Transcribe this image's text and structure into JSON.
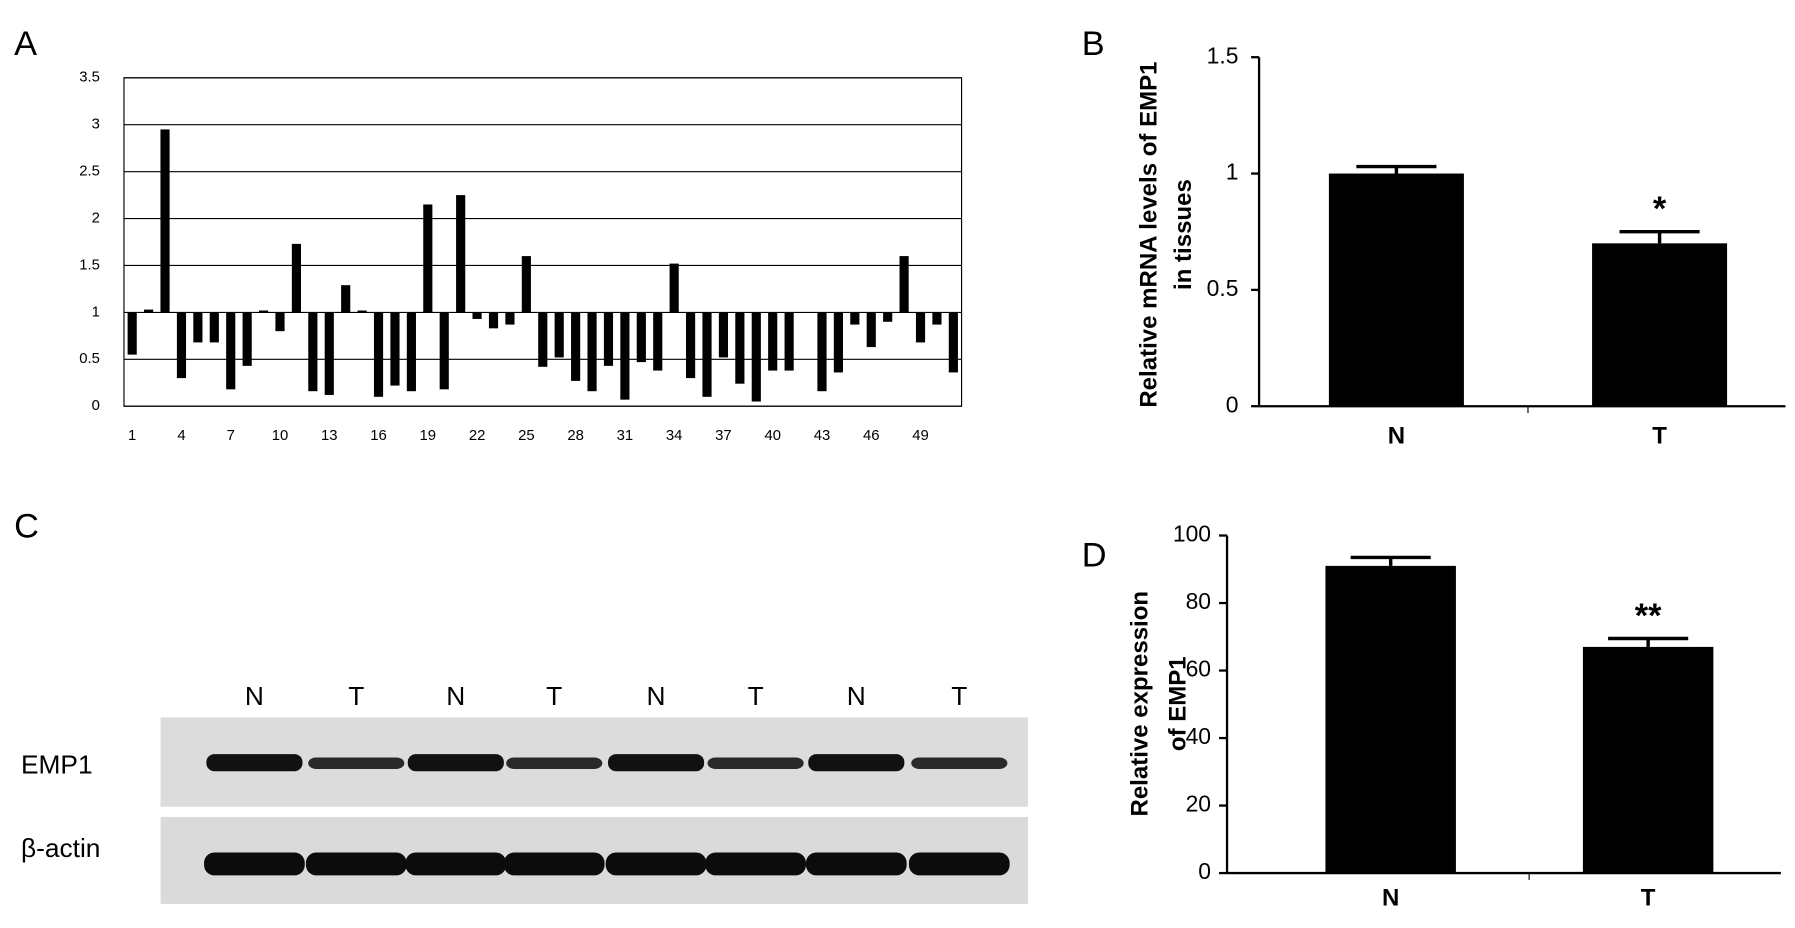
{
  "chart_data": [
    {
      "type": "bar",
      "panel": "A",
      "categories": [
        "1",
        null,
        null,
        "4",
        null,
        null,
        "7",
        null,
        null,
        "10",
        null,
        null,
        "13",
        null,
        null,
        "16",
        null,
        null,
        "19",
        null,
        null,
        "22",
        null,
        null,
        "25",
        null,
        null,
        "28",
        null,
        null,
        "31",
        null,
        null,
        "34",
        null,
        null,
        "37",
        null,
        null,
        "40",
        null,
        null,
        "43",
        null,
        null,
        "46",
        null,
        null,
        "49",
        null,
        null
      ],
      "values": [
        0.55,
        1.03,
        2.95,
        0.3,
        0.68,
        0.68,
        0.18,
        0.43,
        1.02,
        0.8,
        1.73,
        0.16,
        0.12,
        1.29,
        1.02,
        0.1,
        0.22,
        0.16,
        2.15,
        0.18,
        2.25,
        0.93,
        0.83,
        0.87,
        1.6,
        0.42,
        0.52,
        0.27,
        0.16,
        0.43,
        0.07,
        0.47,
        0.38,
        1.52,
        0.3,
        0.1,
        0.52,
        0.24,
        0.05,
        0.38,
        0.38,
        1.0,
        0.16,
        0.36,
        0.87,
        0.63,
        0.9,
        1.6,
        0.68,
        0.87,
        0.36
      ],
      "bar_base": 1,
      "color": "#000000",
      "ylim": [
        0,
        3.5
      ],
      "yticks": [
        0,
        0.5,
        1,
        1.5,
        2,
        2.5,
        3,
        3.5
      ],
      "grid": true
    },
    {
      "type": "bar",
      "panel": "B",
      "y_label": [
        "Relative mRNA levels of EMP1",
        "in tissues"
      ],
      "categories": [
        "N",
        "T"
      ],
      "values": [
        1.0,
        0.7
      ],
      "errors": [
        0.03,
        0.05
      ],
      "annotations": [
        null,
        "*"
      ],
      "color": "#000000",
      "ylim": [
        0,
        1.5
      ],
      "yticks": [
        0,
        0.5,
        1,
        1.5
      ],
      "grid": false
    },
    {
      "type": "bar",
      "panel": "D",
      "y_label": [
        "Relative expression",
        "of EMP1"
      ],
      "categories": [
        "N",
        "T"
      ],
      "values": [
        91,
        67
      ],
      "errors": [
        2.5,
        2.5
      ],
      "annotations": [
        null,
        "**"
      ],
      "color": "#000000",
      "ylim": [
        0,
        100
      ],
      "yticks": [
        0,
        20,
        40,
        60,
        80,
        100
      ],
      "grid": false
    }
  ],
  "blot": {
    "panel": "C",
    "lanes": [
      "N",
      "T",
      "N",
      "T",
      "N",
      "T",
      "N",
      "T"
    ],
    "rows": [
      "EMP1",
      "β-actin"
    ]
  }
}
